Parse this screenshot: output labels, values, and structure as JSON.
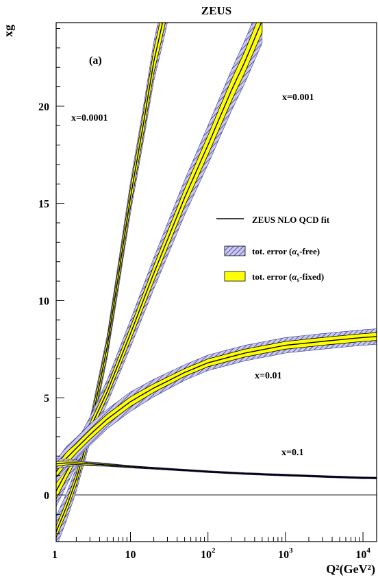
{
  "chart_data": {
    "type": "line",
    "title": "ZEUS",
    "panel_label": "(a)",
    "ylabel": "xg",
    "xlabel": "Q²(GeV²)",
    "x_scale": "log",
    "xlim": [
      1.1,
      15000
    ],
    "ylim": [
      -2.4,
      24.3
    ],
    "y_ticks": [
      0,
      5,
      10,
      15,
      20
    ],
    "x_ticks": [
      {
        "value": 1,
        "label": "1"
      },
      {
        "value": 10,
        "label": "10"
      },
      {
        "value": 100,
        "label": "10",
        "exponent": "2"
      },
      {
        "value": 1000,
        "label": "10",
        "exponent": "3"
      },
      {
        "value": 10000,
        "label": "10",
        "exponent": "4"
      }
    ],
    "legend": {
      "placement": "right-middle",
      "entries": [
        {
          "label": "ZEUS NLO QCD fit",
          "style": "line"
        },
        {
          "label": "tot. error (α_s-free)",
          "style": "hatched"
        },
        {
          "label": "tot. error (α_s-fixed)",
          "style": "yellow"
        }
      ]
    },
    "colors": {
      "hatch": "#3a3a9a",
      "hatch_bg": "#c8c8ee",
      "fixed": "#ffff00",
      "line": "#000000"
    },
    "series": [
      {
        "name": "x=0.0001",
        "x": [
          1.1,
          1.5,
          2,
          3,
          5,
          7,
          10,
          15,
          20,
          25,
          30
        ],
        "y": [
          -1.9,
          -0.6,
          0.8,
          3.3,
          7.6,
          11.3,
          15.3,
          19.3,
          22.3,
          24.0,
          25.5
        ],
        "err_free": [
          0.8,
          0.7,
          0.6,
          0.6,
          0.6,
          0.7,
          0.8,
          0.9,
          1.0,
          1.1,
          1.2
        ],
        "err_fixed": [
          0.3,
          0.3,
          0.3,
          0.35,
          0.4,
          0.45,
          0.5,
          0.55,
          0.6,
          0.65,
          0.7
        ]
      },
      {
        "name": "x=0.001",
        "x": [
          1.1,
          1.5,
          2,
          3,
          5,
          10,
          20,
          50,
          100,
          200,
          300,
          500
        ],
        "y": [
          0.2,
          1.2,
          2.1,
          3.4,
          5.3,
          8.3,
          11.4,
          15.3,
          18.0,
          20.8,
          22.3,
          24.4
        ],
        "err_free": [
          0.8,
          0.7,
          0.6,
          0.6,
          0.6,
          0.7,
          0.8,
          0.9,
          1.0,
          1.05,
          1.1,
          1.15
        ],
        "err_fixed": [
          0.4,
          0.35,
          0.3,
          0.3,
          0.3,
          0.35,
          0.4,
          0.45,
          0.5,
          0.55,
          0.55,
          0.6
        ]
      },
      {
        "name": "x=0.01",
        "x": [
          1.1,
          1.5,
          2,
          3,
          5,
          10,
          20,
          50,
          100,
          300,
          1000,
          3000,
          10000,
          15000
        ],
        "y": [
          1.2,
          1.9,
          2.4,
          3.1,
          3.9,
          4.8,
          5.5,
          6.3,
          6.8,
          7.3,
          7.7,
          7.9,
          8.1,
          8.15
        ],
        "err_free": [
          0.6,
          0.6,
          0.55,
          0.55,
          0.5,
          0.5,
          0.45,
          0.4,
          0.4,
          0.4,
          0.4,
          0.4,
          0.4,
          0.4
        ],
        "err_fixed": [
          0.3,
          0.3,
          0.25,
          0.25,
          0.25,
          0.25,
          0.22,
          0.2,
          0.2,
          0.2,
          0.2,
          0.2,
          0.2,
          0.2
        ]
      },
      {
        "name": "x=0.1",
        "x": [
          1.1,
          1.5,
          2,
          3,
          5,
          10,
          30,
          100,
          300,
          1000,
          3000,
          10000,
          15000
        ],
        "y": [
          1.6,
          1.65,
          1.65,
          1.6,
          1.55,
          1.45,
          1.33,
          1.2,
          1.1,
          1.02,
          0.95,
          0.88,
          0.87
        ],
        "err_free": [
          0.25,
          0.2,
          0.15,
          0.1,
          0.08,
          0.06,
          0.05,
          0.05,
          0.05,
          0.05,
          0.05,
          0.05,
          0.05
        ],
        "err_fixed": [
          0.12,
          0.1,
          0.08,
          0.06,
          0.05,
          0.04,
          0.03,
          0.03,
          0.03,
          0.03,
          0.03,
          0.03,
          0.03
        ]
      }
    ]
  }
}
